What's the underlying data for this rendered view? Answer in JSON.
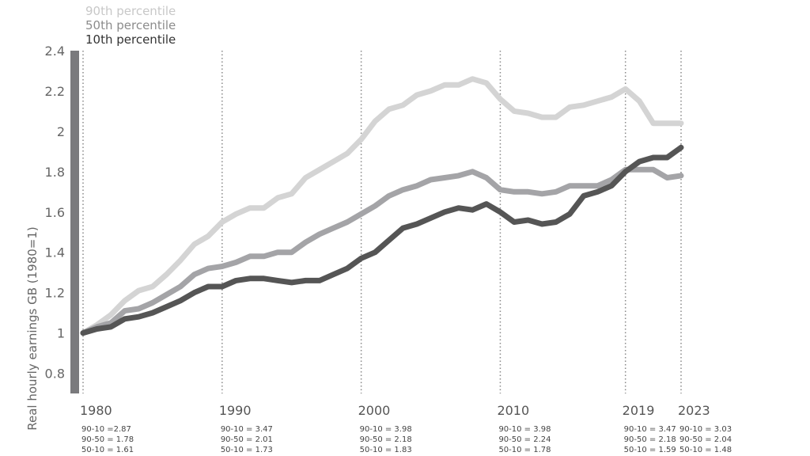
{
  "chart_data": {
    "type": "line",
    "ylabel": "Real hourly earnings GB (1980=1)",
    "ylim": [
      0.7,
      2.4
    ],
    "yticks": [
      0.8,
      1,
      1.2,
      1.4,
      1.6,
      1.8,
      2,
      2.2,
      2.4
    ],
    "ytick_labels": [
      "0.8",
      "1",
      "1.2",
      "1.4",
      "1.6",
      "1.8",
      "2",
      "2.2",
      "2.4"
    ],
    "xlim": [
      1980,
      2023
    ],
    "legend_position": "top-left",
    "marked_years": [
      {
        "label": "1980",
        "year": 1980,
        "ratios": [
          "90-10 =2.87",
          "90-50 = 1.78",
          "50-10 = 1.61"
        ]
      },
      {
        "label": "1990",
        "year": 1990,
        "ratios": [
          "90-10 = 3.47",
          "90-50 = 2.01",
          "50-10 = 1.73"
        ]
      },
      {
        "label": "2000",
        "year": 2000,
        "ratios": [
          "90-10 = 3.98",
          "90-50 = 2.18",
          "50-10 = 1.83"
        ]
      },
      {
        "label": "2010",
        "year": 2010,
        "ratios": [
          "90-10 = 3.98",
          "90-50 = 2.24",
          "50-10 = 1.78"
        ]
      },
      {
        "label": "2019",
        "year": 2019,
        "ratios": [
          "90-10 = 3.47",
          "90-50 = 2.18",
          "50-10 = 1.59"
        ]
      },
      {
        "label": "2023",
        "year": 2023,
        "ratios": [
          "90-10 = 3.03",
          "90-50 = 2.04",
          "50-10 = 1.48"
        ]
      }
    ],
    "x": [
      1980,
      1981,
      1982,
      1983,
      1984,
      1985,
      1986,
      1987,
      1988,
      1989,
      1990,
      1991,
      1992,
      1993,
      1994,
      1995,
      1996,
      1997,
      1998,
      1999,
      2000,
      2001,
      2002,
      2003,
      2004,
      2005,
      2006,
      2007,
      2008,
      2009,
      2010,
      2011,
      2012,
      2013,
      2014,
      2015,
      2016,
      2017,
      2018,
      2019,
      2020,
      2021,
      2022,
      2023
    ],
    "series": [
      {
        "name": "90th percentile",
        "color": "#d4d4d4",
        "values": [
          1.0,
          1.04,
          1.09,
          1.16,
          1.21,
          1.23,
          1.29,
          1.36,
          1.44,
          1.48,
          1.55,
          1.59,
          1.62,
          1.62,
          1.67,
          1.69,
          1.77,
          1.81,
          1.85,
          1.89,
          1.96,
          2.05,
          2.11,
          2.13,
          2.18,
          2.2,
          2.23,
          2.23,
          2.26,
          2.24,
          2.16,
          2.1,
          2.09,
          2.07,
          2.07,
          2.12,
          2.13,
          2.15,
          2.17,
          2.21,
          2.15,
          2.04,
          2.04,
          2.04
        ]
      },
      {
        "name": "50th percentile",
        "color": "#a4a4a7",
        "values": [
          1.0,
          1.03,
          1.05,
          1.11,
          1.12,
          1.15,
          1.19,
          1.23,
          1.29,
          1.32,
          1.33,
          1.35,
          1.38,
          1.38,
          1.4,
          1.4,
          1.45,
          1.49,
          1.52,
          1.55,
          1.59,
          1.63,
          1.68,
          1.71,
          1.73,
          1.76,
          1.77,
          1.78,
          1.8,
          1.77,
          1.71,
          1.7,
          1.7,
          1.69,
          1.7,
          1.73,
          1.73,
          1.73,
          1.76,
          1.81,
          1.81,
          1.81,
          1.77,
          1.78
        ]
      },
      {
        "name": "10th percentile",
        "color": "#555555",
        "values": [
          1.0,
          1.02,
          1.03,
          1.07,
          1.08,
          1.1,
          1.13,
          1.16,
          1.2,
          1.23,
          1.23,
          1.26,
          1.27,
          1.27,
          1.26,
          1.25,
          1.26,
          1.26,
          1.29,
          1.32,
          1.37,
          1.4,
          1.46,
          1.52,
          1.54,
          1.57,
          1.6,
          1.62,
          1.61,
          1.64,
          1.6,
          1.55,
          1.56,
          1.54,
          1.55,
          1.59,
          1.68,
          1.7,
          1.73,
          1.8,
          1.85,
          1.87,
          1.87,
          1.92
        ]
      }
    ]
  }
}
